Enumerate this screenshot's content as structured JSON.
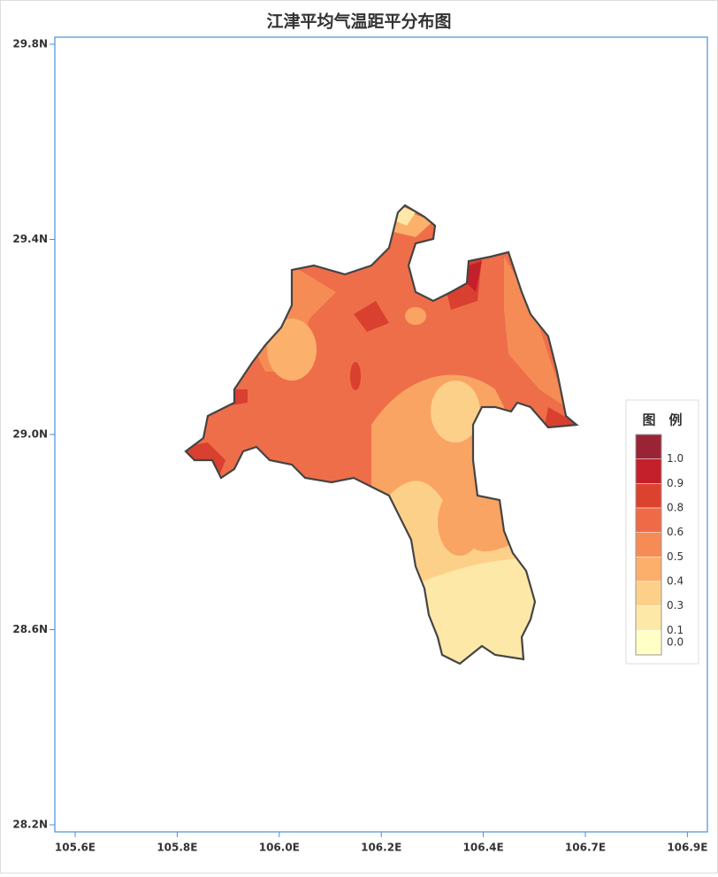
{
  "title": "江津平均气温距平分布图",
  "axes": {
    "y_ticks": [
      "29.8N",
      "29.4N",
      "29.0N",
      "28.6N",
      "28.2N"
    ],
    "x_ticks": [
      "105.6E",
      "105.8E",
      "106.0E",
      "106.2E",
      "106.4E",
      "106.7E",
      "106.9E"
    ]
  },
  "legend": {
    "title": "图　例",
    "items": [
      {
        "label": "1.0",
        "color": "#9b2336"
      },
      {
        "label": "0.9",
        "color": "#c4202b"
      },
      {
        "label": "0.8",
        "color": "#dc432f"
      },
      {
        "label": "0.6",
        "color": "#ef6b48"
      },
      {
        "label": "0.5",
        "color": "#f68c55"
      },
      {
        "label": "0.4",
        "color": "#fbaf6a"
      },
      {
        "label": "0.3",
        "color": "#fdd08a"
      },
      {
        "label": "0.1",
        "color": "#fee8a8"
      },
      {
        "label": "0.0",
        "color": "#ffffc6"
      }
    ]
  }
}
